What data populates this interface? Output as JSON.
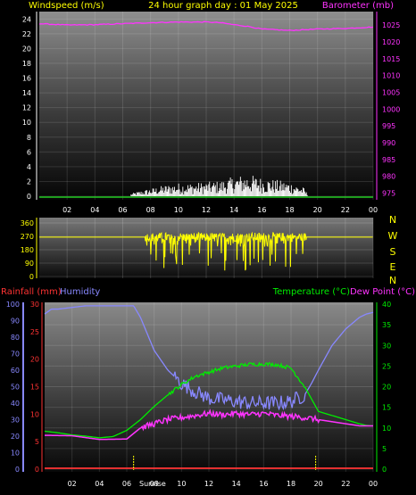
{
  "header": {
    "title": "24 hour graph day : 01 May 2025",
    "left_label": "Windspeed (m/s)",
    "right_label": "Barometer (mb)"
  },
  "colors": {
    "background": "#000000",
    "panel_top": "#8a8a8a",
    "panel_bottom": "#000000",
    "title": "#ffff00",
    "windspeed_axis": "#ffffff",
    "barometer": "#ff33ff",
    "wind_gust": "#ffffff",
    "wind_avg": "#22cc22",
    "direction": "#ffff00",
    "rainfall": "#ff3333",
    "humidity": "#8888ff",
    "temperature": "#00ee00",
    "dewpoint": "#ff33ff",
    "sun_marker": "#ffff00"
  },
  "chart_data": [
    {
      "id": "wind-baro",
      "type": "line",
      "x_ticks": [
        "02",
        "04",
        "06",
        "08",
        "10",
        "12",
        "14",
        "16",
        "18",
        "20",
        "22",
        "00"
      ],
      "y_left": {
        "label": "Windspeed (m/s)",
        "range": [
          0,
          25
        ],
        "ticks": [
          0,
          2,
          4,
          6,
          8,
          10,
          12,
          14,
          16,
          18,
          20,
          22,
          24
        ]
      },
      "y_right": {
        "label": "Barometer (mb)",
        "range": [
          973,
          1029
        ],
        "ticks": [
          975,
          980,
          985,
          990,
          995,
          1000,
          1005,
          1010,
          1015,
          1020,
          1025
        ]
      },
      "gust_profile": {
        "x": [
          0,
          6,
          7,
          8,
          9,
          10,
          11,
          12,
          13,
          14,
          15,
          16,
          17,
          18,
          19,
          19.4,
          24
        ],
        "y": [
          0,
          0,
          0.4,
          0.7,
          1.0,
          1.2,
          1.2,
          1.3,
          1.4,
          1.8,
          2.0,
          1.7,
          1.5,
          1.3,
          0.8,
          0,
          0
        ]
      },
      "wind_avg": {
        "x": [
          0,
          24
        ],
        "y": [
          0,
          0
        ]
      },
      "barometer": {
        "x": [
          0,
          2,
          4,
          6,
          8,
          10,
          12,
          13,
          14,
          15,
          16,
          17,
          18,
          19,
          20,
          22,
          24
        ],
        "y": [
          1025.4,
          1025.0,
          1025.1,
          1025.4,
          1025.7,
          1025.9,
          1025.9,
          1025.7,
          1025.1,
          1024.6,
          1023.8,
          1023.6,
          1023.4,
          1023.6,
          1023.8,
          1024.0,
          1024.4
        ]
      }
    },
    {
      "id": "wind-direction",
      "type": "line",
      "x_ticks": [],
      "y_left": {
        "range": [
          0,
          360
        ],
        "ticks": [
          0,
          90,
          180,
          270,
          360
        ]
      },
      "y_right_labels": [
        "N",
        "W",
        "S",
        "E",
        "N"
      ],
      "direction": {
        "baseline": 265,
        "active_from": 7.6,
        "active_to": 19.2
      }
    },
    {
      "id": "rain-hum-temp",
      "type": "line",
      "x_ticks": [
        "02",
        "04",
        "06",
        "08",
        "10",
        "12",
        "14",
        "16",
        "18",
        "20",
        "22",
        "00"
      ],
      "y_left_rain": {
        "label": "Rainfall (mm)",
        "range": [
          0,
          30
        ],
        "ticks": [
          0,
          5,
          10,
          15,
          20,
          25,
          30
        ]
      },
      "y_left_humidity": {
        "label": "Humidity",
        "range": [
          0,
          100
        ],
        "ticks": [
          0,
          10,
          20,
          30,
          40,
          50,
          60,
          70,
          80,
          90,
          100
        ]
      },
      "y_right": {
        "label_temperature": "Temperature (°C)",
        "label_dewpoint": "Dew Point (°C)",
        "range": [
          0,
          40
        ],
        "ticks": [
          0,
          5,
          10,
          15,
          20,
          25,
          30,
          35,
          40
        ]
      },
      "sunrise_label": "Sunrise",
      "sunrise_hour": 6.5,
      "sunset_hour": 19.8,
      "rainfall": {
        "x": [
          0,
          24
        ],
        "y": [
          0,
          0
        ]
      },
      "humidity": {
        "x": [
          0,
          0.5,
          1,
          2,
          3,
          4,
          5,
          6,
          6.5,
          7,
          8,
          9,
          10,
          11,
          12,
          13,
          14,
          15,
          16,
          17,
          18,
          19,
          19.5,
          20,
          21,
          22,
          23,
          23.5,
          24
        ],
        "y": [
          94,
          97,
          97,
          98,
          99,
          99,
          99,
          99,
          99,
          92,
          72,
          60,
          52,
          47,
          43,
          42,
          41,
          40,
          40,
          40,
          41,
          45,
          52,
          60,
          75,
          85,
          92,
          94,
          95
        ]
      },
      "temperature": {
        "x": [
          0,
          1,
          2,
          3,
          4,
          5,
          6,
          7,
          8,
          9,
          10,
          11,
          12,
          13,
          14,
          15,
          16,
          17,
          18,
          19,
          20,
          21,
          22,
          23,
          23.5,
          24
        ],
        "y": [
          9.2,
          8.8,
          8.3,
          8.0,
          7.6,
          7.9,
          9.4,
          12,
          15.2,
          18,
          20.5,
          22.5,
          23.5,
          24.5,
          25,
          25.4,
          25.5,
          25.3,
          24.5,
          20,
          14,
          13,
          12,
          11,
          10.6,
          10.5
        ]
      },
      "dewpoint": {
        "x": [
          0,
          2,
          4,
          6,
          7,
          8,
          9,
          10,
          11,
          12,
          13,
          14,
          15,
          16,
          17,
          18,
          19,
          20,
          21,
          22,
          23,
          24
        ],
        "y": [
          8.2,
          8.1,
          7.2,
          7.3,
          10,
          11,
          12,
          12.5,
          13,
          13.5,
          13.2,
          13.5,
          13.2,
          13.5,
          13,
          12.8,
          12.5,
          12,
          11.5,
          11.0,
          10.5,
          10.5
        ]
      }
    }
  ],
  "right_panel": {
    "compass": [
      "N",
      "W",
      "S",
      "E",
      "N"
    ]
  }
}
